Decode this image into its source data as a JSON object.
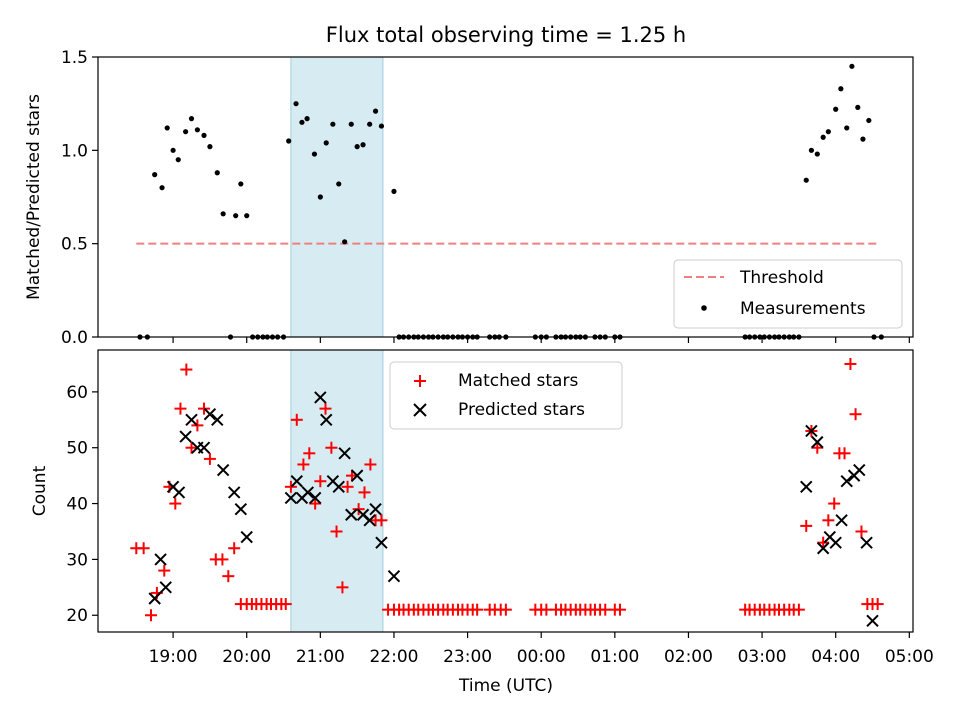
{
  "figure_title": "Flux total observing time = 1.25 h",
  "chart_data": [
    {
      "type": "scatter",
      "panel": "top",
      "ylabel": "Matched/Predicted stars",
      "xlabel": "",
      "ylim": [
        0,
        1.5
      ],
      "yticks": [
        0.0,
        0.5,
        1.0,
        1.5
      ],
      "ytick_labels": [
        "0.0",
        "0.5",
        "1.0",
        "1.5"
      ],
      "highlight_span": {
        "start": 20.6,
        "end": 21.85,
        "color": "#add8e6"
      },
      "threshold": {
        "name": "Threshold",
        "y": 0.5,
        "x_start": 18.5,
        "x_end": 28.6,
        "color": "#f08080"
      },
      "legend": {
        "placement": "lower-right",
        "entries": [
          "Threshold",
          "Measurements"
        ]
      },
      "series": [
        {
          "name": "Measurements",
          "color": "#000000",
          "x": [
            18.55,
            18.65,
            18.75,
            18.85,
            18.92,
            19.0,
            19.07,
            19.17,
            19.25,
            19.33,
            19.42,
            19.5,
            19.6,
            19.68,
            19.78,
            19.85,
            19.92,
            20.0,
            20.08,
            20.15,
            20.22,
            20.28,
            20.35,
            20.42,
            20.5,
            20.57,
            20.67,
            20.75,
            20.82,
            20.92,
            21.0,
            21.08,
            21.17,
            21.25,
            21.33,
            21.42,
            21.5,
            21.58,
            21.67,
            21.75,
            21.83,
            22.0,
            22.07,
            22.13,
            22.2,
            22.27,
            22.33,
            22.4,
            22.47,
            22.53,
            22.6,
            22.67,
            22.73,
            22.8,
            22.87,
            22.93,
            23.0,
            23.07,
            23.13,
            23.3,
            23.37,
            23.43,
            23.52,
            23.92,
            24.0,
            24.07,
            24.2,
            24.27,
            24.33,
            24.4,
            24.47,
            24.53,
            24.6,
            24.73,
            24.8,
            24.87,
            25.0,
            25.07,
            26.77,
            26.83,
            26.9,
            26.97,
            27.03,
            27.1,
            27.17,
            27.23,
            27.3,
            27.37,
            27.43,
            27.5,
            27.6,
            27.67,
            27.75,
            27.83,
            27.9,
            28.0,
            28.07,
            28.15,
            28.22,
            28.3,
            28.37,
            28.45,
            28.52,
            28.62
          ],
          "y": [
            0.0,
            0.0,
            0.87,
            0.8,
            1.12,
            1.0,
            0.95,
            1.1,
            1.17,
            1.11,
            1.08,
            1.02,
            0.88,
            0.66,
            0.0,
            0.65,
            0.82,
            0.65,
            0.0,
            0.0,
            0.0,
            0.0,
            0.0,
            0.0,
            0.0,
            1.05,
            1.25,
            1.15,
            1.17,
            0.98,
            0.75,
            1.04,
            1.14,
            0.82,
            0.51,
            1.14,
            1.02,
            1.03,
            1.14,
            1.21,
            1.13,
            0.78,
            0.0,
            0.0,
            0.0,
            0.0,
            0.0,
            0.0,
            0.0,
            0.0,
            0.0,
            0.0,
            0.0,
            0.0,
            0.0,
            0.0,
            0.0,
            0.0,
            0.0,
            0.0,
            0.0,
            0.0,
            0.0,
            0.0,
            0.0,
            0.0,
            0.0,
            0.0,
            0.0,
            0.0,
            0.0,
            0.0,
            0.0,
            0.0,
            0.0,
            0.0,
            0.0,
            0.0,
            0.0,
            0.0,
            0.0,
            0.0,
            0.0,
            0.0,
            0.0,
            0.0,
            0.0,
            0.0,
            0.0,
            0.0,
            0.84,
            1.0,
            0.98,
            1.07,
            1.1,
            1.22,
            1.33,
            1.12,
            1.45,
            1.23,
            1.06,
            1.16,
            0.0,
            0.0
          ]
        }
      ]
    },
    {
      "type": "scatter",
      "panel": "bottom",
      "ylabel": "Count",
      "xlabel": "Time (UTC)",
      "ylim": [
        17,
        67.5
      ],
      "yticks": [
        20,
        30,
        40,
        50,
        60
      ],
      "ytick_labels": [
        "20",
        "30",
        "40",
        "50",
        "60"
      ],
      "xlim": [
        17.98,
        29.05
      ],
      "xticks": [
        19,
        20,
        21,
        22,
        23,
        24,
        25,
        26,
        27,
        28,
        29
      ],
      "xtick_labels": [
        "19:00",
        "20:00",
        "21:00",
        "22:00",
        "23:00",
        "00:00",
        "01:00",
        "02:00",
        "03:00",
        "04:00",
        "05:00"
      ],
      "highlight_span": {
        "start": 20.6,
        "end": 21.85,
        "color": "#add8e6"
      },
      "legend": {
        "placement": "top-center",
        "entries": [
          "Matched stars",
          "Predicted stars"
        ]
      },
      "series": [
        {
          "name": "Matched stars",
          "marker": "plus",
          "color": "#ff0000",
          "x": [
            18.5,
            18.6,
            18.7,
            18.78,
            18.88,
            18.95,
            19.03,
            19.1,
            19.18,
            19.25,
            19.33,
            19.42,
            19.5,
            19.58,
            19.67,
            19.75,
            19.83,
            19.92,
            20.0,
            20.07,
            20.13,
            20.2,
            20.27,
            20.33,
            20.4,
            20.47,
            20.53,
            20.6,
            20.68,
            20.77,
            20.85,
            20.93,
            21.0,
            21.07,
            21.15,
            21.22,
            21.3,
            21.37,
            21.43,
            21.52,
            21.6,
            21.68,
            21.75,
            21.83,
            21.92,
            22.0,
            22.07,
            22.13,
            22.2,
            22.27,
            22.33,
            22.4,
            22.47,
            22.53,
            22.6,
            22.67,
            22.73,
            22.8,
            22.87,
            22.93,
            23.0,
            23.07,
            23.13,
            23.3,
            23.37,
            23.45,
            23.52,
            23.92,
            24.0,
            24.07,
            24.2,
            24.27,
            24.33,
            24.4,
            24.47,
            24.53,
            24.6,
            24.67,
            24.73,
            24.8,
            24.87,
            25.0,
            25.07,
            26.77,
            26.83,
            26.9,
            26.97,
            27.03,
            27.1,
            27.17,
            27.23,
            27.3,
            27.37,
            27.43,
            27.5,
            27.6,
            27.67,
            27.75,
            27.83,
            27.9,
            27.98,
            28.05,
            28.12,
            28.2,
            28.27,
            28.35,
            28.43,
            28.5,
            28.57
          ],
          "y": [
            32,
            32,
            20,
            24,
            28,
            43,
            40,
            57,
            64,
            50,
            54,
            57,
            48,
            30,
            30,
            27,
            32,
            22,
            22,
            22,
            22,
            22,
            22,
            22,
            22,
            22,
            22,
            43,
            55,
            47,
            49,
            40,
            44,
            57,
            50,
            35,
            25,
            43,
            45,
            39,
            42,
            47,
            37,
            37,
            21,
            21,
            21,
            21,
            21,
            21,
            21,
            21,
            21,
            21,
            21,
            21,
            21,
            21,
            21,
            21,
            21,
            21,
            21,
            21,
            21,
            21,
            21,
            21,
            21,
            21,
            21,
            21,
            21,
            21,
            21,
            21,
            21,
            21,
            21,
            21,
            21,
            21,
            21,
            21,
            21,
            21,
            21,
            21,
            21,
            21,
            21,
            21,
            21,
            21,
            21,
            36,
            53,
            50,
            33,
            37,
            40,
            49,
            49,
            65,
            56,
            35,
            22,
            22,
            22
          ]
        },
        {
          "name": "Predicted stars",
          "marker": "x",
          "color": "#000000",
          "x": [
            18.75,
            18.83,
            18.9,
            19.0,
            19.08,
            19.17,
            19.25,
            19.33,
            19.42,
            19.5,
            19.6,
            19.68,
            19.83,
            19.92,
            20.0,
            20.6,
            20.68,
            20.75,
            20.83,
            20.93,
            21.0,
            21.08,
            21.17,
            21.25,
            21.33,
            21.42,
            21.5,
            21.58,
            21.67,
            21.75,
            21.83,
            22.0,
            27.6,
            27.67,
            27.75,
            27.83,
            27.92,
            28.0,
            28.08,
            28.15,
            28.25,
            28.32,
            28.42,
            28.5
          ],
          "y": [
            23,
            30,
            25,
            43,
            42,
            52,
            55,
            50,
            50,
            56,
            55,
            46,
            42,
            39,
            34,
            41,
            44,
            41,
            42,
            41,
            59,
            55,
            44,
            43,
            49,
            38,
            45,
            38,
            37,
            39,
            33,
            27,
            43,
            53,
            51,
            32,
            34,
            33,
            37,
            44,
            45,
            46,
            33,
            19
          ]
        }
      ]
    }
  ]
}
